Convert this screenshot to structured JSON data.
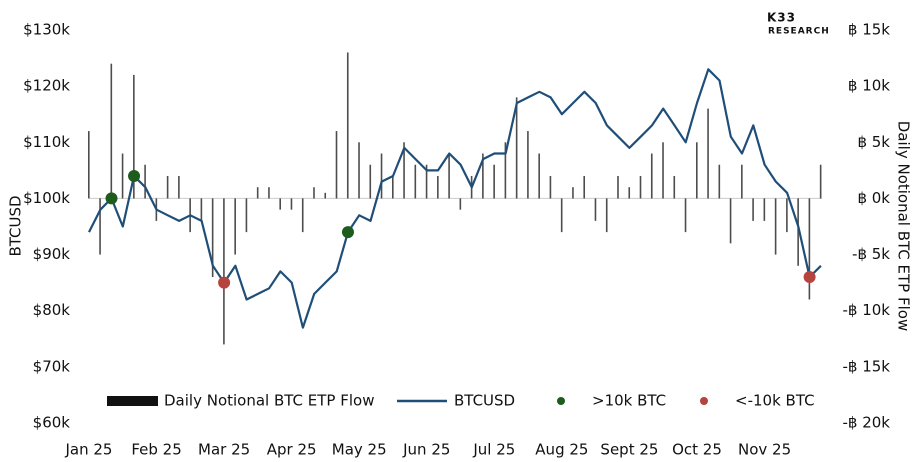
{
  "chart_data": {
    "type": "bar-line",
    "brand": "K33",
    "brand_sub": "RESEARCH",
    "y_label": "BTCUSD",
    "y2_label": "Daily Notional BTC ETP Flow",
    "categories": [
      "Jan 25",
      null,
      null,
      null,
      null,
      null,
      "Feb 25",
      null,
      null,
      null,
      null,
      null,
      "Mar 25",
      null,
      null,
      null,
      null,
      null,
      "Apr 25",
      null,
      null,
      null,
      null,
      null,
      "May 25",
      null,
      null,
      null,
      null,
      null,
      "Jun 25",
      null,
      null,
      null,
      null,
      null,
      "Jul 25",
      null,
      null,
      null,
      null,
      null,
      "Aug 25",
      null,
      null,
      null,
      null,
      null,
      "Sept 25",
      null,
      null,
      null,
      null,
      null,
      "Oct 25",
      null,
      null,
      null,
      null,
      null,
      "Nov 25",
      null,
      null,
      null,
      null,
      null
    ],
    "series": [
      {
        "name": "Daily Notional BTC ETP Flow",
        "type": "bar",
        "axis": "y2",
        "color": "#111111",
        "values": [
          6000,
          -5000,
          12000,
          4000,
          11000,
          3000,
          -2000,
          2000,
          2000,
          -3000,
          -2000,
          -7000,
          -13000,
          -5000,
          -3000,
          1000,
          1000,
          -1000,
          -1000,
          -3000,
          1000,
          500,
          6000,
          13000,
          5000,
          3000,
          4000,
          2000,
          5000,
          3000,
          3000,
          2000,
          4000,
          -1000,
          2000,
          4000,
          3000,
          5000,
          9000,
          6000,
          4000,
          2000,
          -3000,
          1000,
          2000,
          -2000,
          -3000,
          2000,
          1000,
          2000,
          4000,
          5000,
          2000,
          -3000,
          5000,
          8000,
          3000,
          -4000,
          3000,
          -2000,
          -2000,
          -5000,
          -3000,
          -6000,
          -9000,
          3000
        ]
      },
      {
        "name": "BTCUSD",
        "type": "line",
        "color": "#1f4e79",
        "values": [
          94000,
          98000,
          100000,
          95000,
          104000,
          102000,
          98000,
          97000,
          96000,
          97000,
          96000,
          88000,
          85000,
          88000,
          82000,
          83000,
          84000,
          87000,
          85000,
          77000,
          83000,
          85000,
          87000,
          94000,
          97000,
          96000,
          103000,
          104000,
          109000,
          107000,
          105000,
          105000,
          108000,
          106000,
          102000,
          107000,
          108000,
          108000,
          117000,
          118000,
          119000,
          118000,
          115000,
          117000,
          119000,
          117000,
          113000,
          111000,
          109000,
          111000,
          113000,
          116000,
          113000,
          110000,
          117000,
          123000,
          121000,
          111000,
          108000,
          113000,
          106000,
          103000,
          101000,
          95000,
          86000,
          88000
        ]
      },
      {
        "name": ">10k BTC",
        "type": "scatter",
        "color": "#1e5c1e",
        "values": [
          null,
          null,
          100000,
          null,
          104000,
          null,
          null,
          null,
          null,
          null,
          null,
          null,
          null,
          null,
          null,
          null,
          null,
          null,
          null,
          null,
          null,
          null,
          null,
          94000,
          null,
          null,
          null,
          null,
          null,
          null,
          null,
          null,
          null,
          null,
          null,
          null,
          null,
          null,
          null,
          null,
          null,
          null,
          null,
          null,
          null,
          null,
          null,
          null,
          null,
          null,
          null,
          null,
          null,
          null,
          null,
          null,
          null,
          null,
          null,
          null,
          null,
          null,
          null,
          null,
          null,
          null
        ]
      },
      {
        "name": "<-10k BTC",
        "type": "scatter",
        "color": "#b5443f",
        "values": [
          null,
          null,
          null,
          null,
          null,
          null,
          null,
          null,
          null,
          null,
          null,
          null,
          85000,
          null,
          null,
          null,
          null,
          null,
          null,
          null,
          null,
          null,
          null,
          null,
          null,
          null,
          null,
          null,
          null,
          null,
          null,
          null,
          null,
          null,
          null,
          null,
          null,
          null,
          null,
          null,
          null,
          null,
          null,
          null,
          null,
          null,
          null,
          null,
          null,
          null,
          null,
          null,
          null,
          null,
          null,
          null,
          null,
          null,
          null,
          null,
          null,
          null,
          null,
          null,
          86000,
          null
        ]
      }
    ],
    "ylim": [
      60000,
      130000
    ],
    "yticks": [
      {
        "value": 60000,
        "label": "$60k"
      },
      {
        "value": 70000,
        "label": "$70k"
      },
      {
        "value": 80000,
        "label": "$80k"
      },
      {
        "value": 90000,
        "label": "$90k"
      },
      {
        "value": 100000,
        "label": "$100k"
      },
      {
        "value": 110000,
        "label": "$110k"
      },
      {
        "value": 120000,
        "label": "$120k"
      },
      {
        "value": 130000,
        "label": "$130k"
      }
    ],
    "y2lim": [
      -20000,
      15000
    ],
    "y2ticks": [
      {
        "value": -20000,
        "label": "-฿ 20k"
      },
      {
        "value": -15000,
        "label": "-฿ 15k"
      },
      {
        "value": -10000,
        "label": "-฿ 10k"
      },
      {
        "value": -5000,
        "label": "-฿ 5k"
      },
      {
        "value": 0,
        "label": "฿ 0k"
      },
      {
        "value": 5000,
        "label": "฿ 5k"
      },
      {
        "value": 10000,
        "label": "฿ 10k"
      },
      {
        "value": 15000,
        "label": "฿ 15k"
      }
    ],
    "legend": "bottom"
  }
}
